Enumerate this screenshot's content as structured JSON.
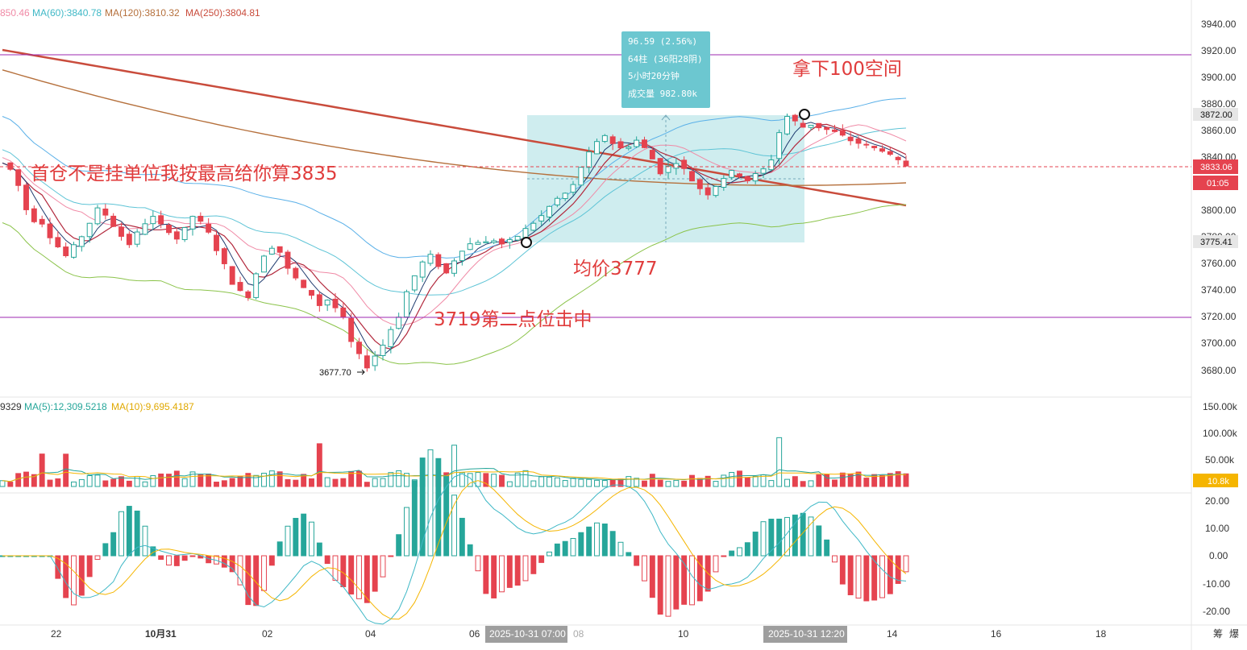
{
  "colors": {
    "up": "#26a69a",
    "down": "#e5434f",
    "purple_line": "#9c27b0",
    "ma250": "#c94c3c",
    "ma120": "#b5703c",
    "ma60": "#5ec4d6",
    "ma_pink": "#f08aa6",
    "ma_dark": "#b2283c",
    "ma_green": "#8bc34a",
    "boll": "#5ab0e8",
    "vol_ma5": "#26a69a",
    "vol_ma10": "#f5b500",
    "tip_bg": "#6cc7d0",
    "box_bg": "#bfe7ea",
    "annotation": "#e03c3c"
  },
  "legend": {
    "price_ma": [
      "850.46",
      "MA(60):3840.78",
      "MA(120):3810.32",
      "MA(250):3804.81"
    ],
    "volume_ma": [
      "9329",
      "MA(5):12,309.5218",
      "MA(10):9,695.4187"
    ]
  },
  "price_axis": {
    "ticks": [
      "3940.00",
      "3920.00",
      "3900.00",
      "3880.00",
      "3860.00",
      "3840.00",
      "3800.00",
      "3780.00",
      "3760.00",
      "3740.00",
      "3720.00",
      "3700.00",
      "3680.00"
    ],
    "tags": {
      "high": "3872.00",
      "current": "3833.06",
      "countdown": "01:05",
      "low": "3775.41"
    }
  },
  "volume_axis": {
    "ticks": [
      "150.00k",
      "100.00k",
      "50.00k"
    ],
    "current": "10.8k"
  },
  "macd_axis": {
    "ticks": [
      "20.00",
      "10.00",
      "0.00",
      "-10.00",
      "-20.00"
    ]
  },
  "time_axis": {
    "labels": [
      "22",
      "10月31",
      "02",
      "04",
      "06",
      "08",
      "10",
      "14",
      "16",
      "18"
    ],
    "highlights": [
      "2025-10-31 07:00",
      "2025-10-31 12:20"
    ],
    "corner": [
      "筹",
      "爆"
    ]
  },
  "measure_tooltip": {
    "lines": [
      "96.59 (2.56%)",
      "64柱 (36阳28阴)",
      "5小时20分钟",
      "成交量 982.80k"
    ]
  },
  "annotations": {
    "take_100": "拿下100空间",
    "first_position": "首仓不是挂单位我按最高给你算3835",
    "avg_price": "均价3777",
    "second_point": "3719第二点位击中",
    "low_label": "3677.70"
  },
  "chart_data": {
    "type": "candlestick",
    "title": "",
    "y_range": [
      3665,
      3945
    ],
    "horizontal_lines": [
      3918,
      3719,
      3833.06
    ],
    "measure_range": {
      "from": 3775.41,
      "to": 3872.0,
      "change": "96.59 (2.56%)",
      "bars": 64,
      "up_bars": 36,
      "down_bars": 28,
      "duration": "5小时20分钟",
      "volume": "982.80k"
    },
    "marked_points": [
      {
        "label": "entry",
        "price": 3775
      },
      {
        "label": "exit",
        "price": 3872
      }
    ],
    "price_path": [
      3835,
      3830,
      3818,
      3800,
      3792,
      3790,
      3780,
      3772,
      3765,
      3772,
      3780,
      3790,
      3800,
      3796,
      3788,
      3780,
      3774,
      3782,
      3790,
      3794,
      3788,
      3784,
      3778,
      3785,
      3795,
      3790,
      3782,
      3770,
      3758,
      3745,
      3738,
      3735,
      3752,
      3766,
      3772,
      3768,
      3755,
      3748,
      3740,
      3736,
      3728,
      3732,
      3726,
      3718,
      3700,
      3690,
      3682,
      3690,
      3698,
      3710,
      3720,
      3738,
      3750,
      3760,
      3765,
      3758,
      3752,
      3762,
      3770,
      3774,
      3776,
      3775,
      3777,
      3774,
      3776,
      3780,
      3785,
      3790,
      3795,
      3802,
      3808,
      3812,
      3818,
      3832,
      3842,
      3850,
      3856,
      3850,
      3846,
      3848,
      3852,
      3846,
      3838,
      3828,
      3832,
      3836,
      3830,
      3822,
      3816,
      3812,
      3818,
      3824,
      3828,
      3826,
      3822,
      3826,
      3830,
      3838,
      3858,
      3870,
      3866,
      3862,
      3864,
      3862,
      3860,
      3858,
      3855,
      3852,
      3850,
      3848,
      3846,
      3845,
      3840,
      3836,
      3833
    ],
    "volume": {
      "ma5": "12,309.5218",
      "ma10": "9,695.4187",
      "last": "10.8k",
      "y_range": [
        0,
        160
      ]
    },
    "macd": {
      "y_range": [
        -22,
        22
      ]
    }
  }
}
